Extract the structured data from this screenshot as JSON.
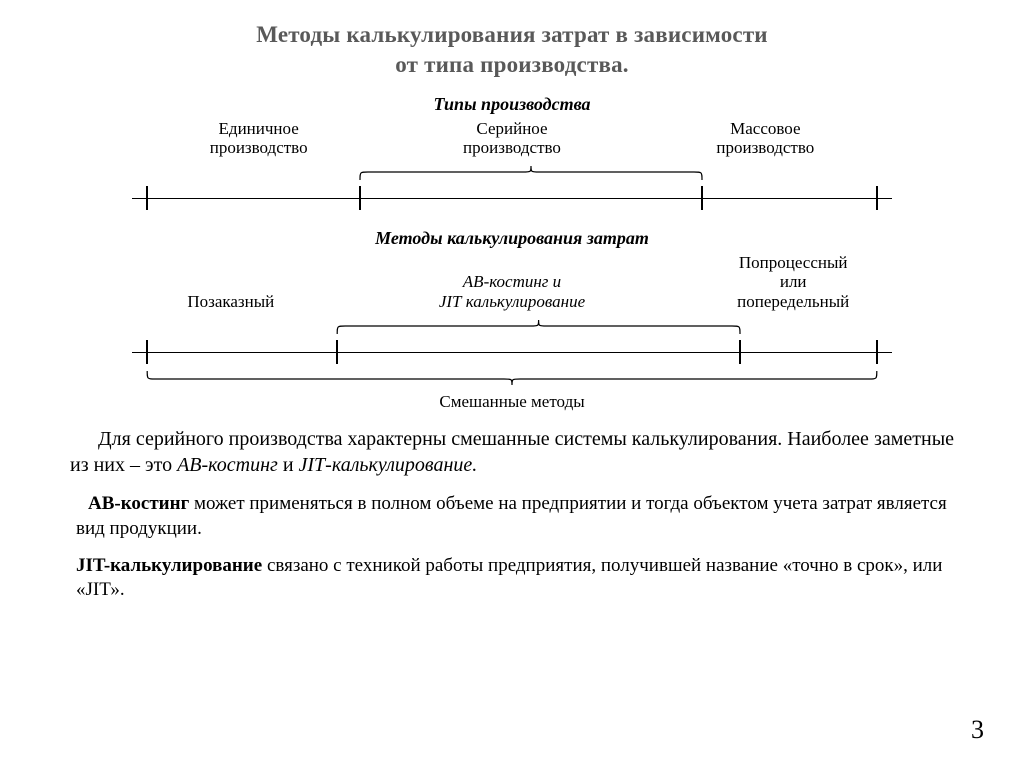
{
  "title_line1": "Методы калькулирования затрат в зависимости",
  "title_line2": "от типа производства.",
  "diagram1": {
    "header": "Типы производства",
    "labels": [
      "Единичное\nпроизводство",
      "Серийное\nпроизводство",
      "Массовое\nпроизводство"
    ],
    "ticks_pct": [
      2,
      30,
      75,
      98
    ],
    "brace_top": {
      "from_pct": 30,
      "to_pct": 75
    },
    "line_color": "#000000"
  },
  "diagram2": {
    "header": "Методы калькулирования затрат",
    "labels_top": {
      "left": "Позаказный",
      "mid_line1": "АВ-костинг и",
      "mid_line2": "JIТ калькулирование",
      "right_line1": "Попроцессный",
      "right_line2": "или",
      "right_line3": "попередельный"
    },
    "ticks_pct": [
      2,
      27,
      80,
      98
    ],
    "brace_top": {
      "from_pct": 27,
      "to_pct": 80
    },
    "brace_bottom": {
      "from_pct": 2,
      "to_pct": 98
    },
    "bottom_label": "Смешанные методы",
    "line_color": "#000000"
  },
  "paragraph": {
    "t1": "Для серийного производства характерны смешанные системы калькулирования. Наиболее заметные из них – это ",
    "em1": "АВ-костинг",
    "t2": " и ",
    "em2": "JIТ-калькулирование.",
    "fontsize": 20
  },
  "sub1": {
    "strong": "АВ-костинг",
    "rest": " может применяться в полном объеме на предприятии и тогда объектом учета затрат является вид продукции.",
    "fontsize": 19
  },
  "sub2": {
    "strong": "JIT-калькулирование",
    "rest": " связано с техникой работы предприятия, получившей название «точно в срок», или «JIТ».",
    "fontsize": 19
  },
  "page_number": "3",
  "colors": {
    "title": "#595959",
    "text": "#000000",
    "background": "#ffffff"
  }
}
